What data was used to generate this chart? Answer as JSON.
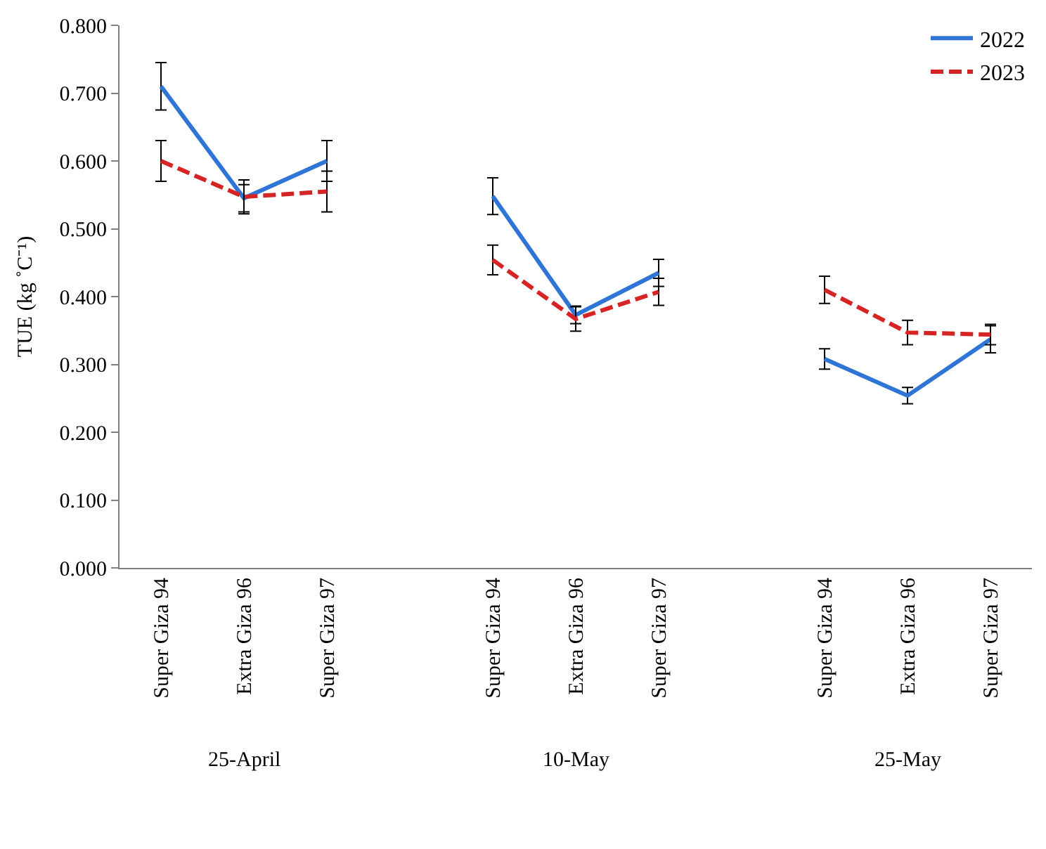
{
  "chart_data": {
    "type": "line",
    "ylabel": "TUE (kg ˚C⁻¹)",
    "categories": [
      "Super Giza 94",
      "Extra Giza 96",
      "Super Giza 97",
      null,
      "Super Giza 94",
      "Extra Giza 96",
      "Super Giza 97",
      null,
      "Super Giza 94",
      "Extra Giza 96",
      "Super Giza 97"
    ],
    "series": [
      {
        "name": "2022",
        "color": "#2e75d6",
        "line_style": "solid",
        "values": [
          0.71,
          0.545,
          0.6,
          null,
          0.548,
          0.373,
          0.435,
          null,
          0.308,
          0.254,
          0.337
        ],
        "errors": [
          0.035,
          0.02,
          0.03,
          null,
          0.027,
          0.013,
          0.02,
          null,
          0.015,
          0.012,
          0.02
        ]
      },
      {
        "name": "2023",
        "color": "#d62424",
        "line_style": "dashed",
        "values": [
          0.6,
          0.547,
          0.555,
          null,
          0.454,
          0.367,
          0.407,
          null,
          0.41,
          0.347,
          0.344
        ],
        "errors": [
          0.03,
          0.025,
          0.03,
          null,
          0.022,
          0.018,
          0.02,
          null,
          0.02,
          0.018,
          0.015
        ]
      }
    ],
    "annotations": [
      "25-April",
      "10-May",
      "25-May"
    ],
    "ylim": [
      0,
      0.8
    ],
    "yticks": [
      {
        "value": 0,
        "label": "0.000"
      },
      {
        "value": 0.1,
        "label": "0.100"
      },
      {
        "value": 0.2,
        "label": "0.200"
      },
      {
        "value": 0.3,
        "label": "0.300"
      },
      {
        "value": 0.4,
        "label": "0.400"
      },
      {
        "value": 0.5,
        "label": "0.500"
      },
      {
        "value": 0.6,
        "label": "0.600"
      },
      {
        "value": 0.7,
        "label": "0.700"
      },
      {
        "value": 0.8,
        "label": "0.800"
      }
    ],
    "grid": false,
    "legend": "top right",
    "marker": "none"
  }
}
